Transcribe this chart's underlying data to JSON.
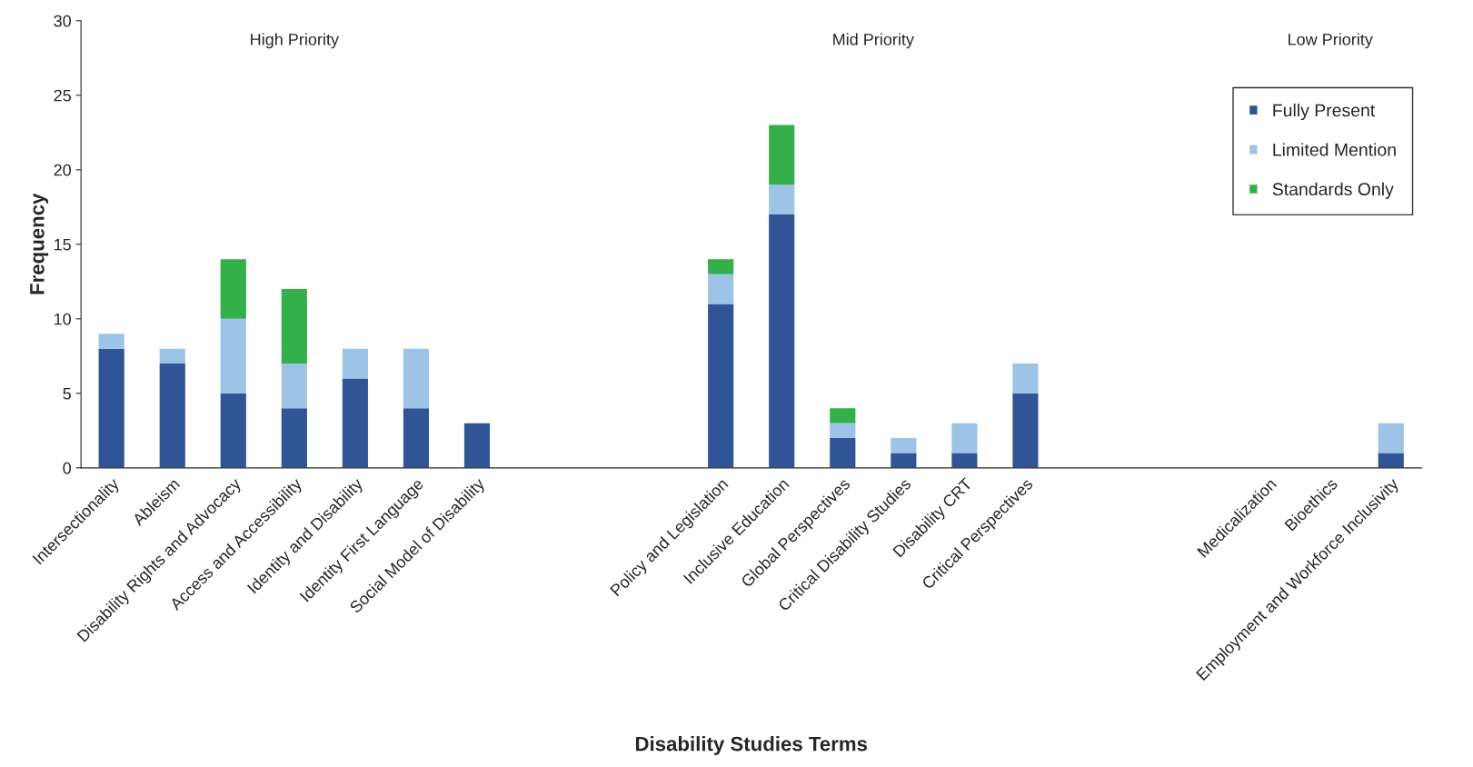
{
  "chart_data": {
    "type": "bar",
    "stacked": true,
    "xlabel": "Disability Studies Terms",
    "ylabel": "Frequency",
    "categories": [
      "Intersectionality",
      "Ableism",
      "Disability Rights and Advocacy",
      "Access and Accessibility",
      "Identity and Disability",
      "Identity First Language",
      "Social Model of Disability",
      null,
      null,
      null,
      "Policy and Legislation",
      "Inclusive Education",
      "Global Perspectives",
      "Critical Disability Studies",
      "Disability CRT",
      "Critical Perspectives",
      null,
      null,
      null,
      "Medicalization",
      "Bioethics",
      "Employment and Workforce Inclusivity"
    ],
    "series": [
      {
        "name": "Fully Present",
        "color": "#2f5597",
        "values": [
          8,
          7,
          5,
          4,
          6,
          4,
          3,
          null,
          null,
          null,
          11,
          17,
          2,
          1,
          1,
          5,
          null,
          null,
          null,
          null,
          null,
          1
        ]
      },
      {
        "name": "Limited Mention",
        "color": "#9dc3e6",
        "values": [
          1,
          1,
          5,
          3,
          2,
          4,
          null,
          null,
          null,
          null,
          2,
          2,
          1,
          1,
          2,
          2,
          null,
          null,
          null,
          null,
          null,
          2
        ]
      },
      {
        "name": "Standards Only",
        "color": "#33b04a",
        "values": [
          null,
          null,
          4,
          5,
          null,
          null,
          null,
          null,
          null,
          null,
          1,
          4,
          1,
          null,
          null,
          null,
          null,
          null,
          null,
          null,
          null,
          null
        ]
      }
    ],
    "ylim": [
      0,
      30
    ],
    "yticks": [
      0,
      5,
      10,
      15,
      20,
      25,
      30
    ],
    "grid": false,
    "legend": "top right",
    "annotations": [
      "High Priority",
      "Mid Priority",
      "Low Priority"
    ]
  }
}
